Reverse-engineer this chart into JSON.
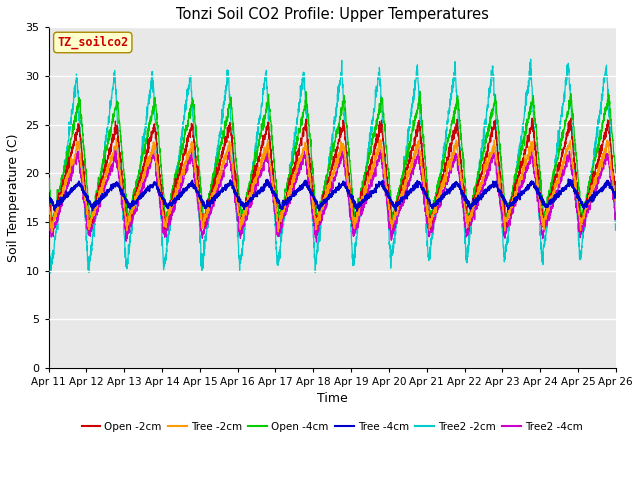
{
  "title": "Tonzi Soil CO2 Profile: Upper Temperatures",
  "xlabel": "Time",
  "ylabel": "Soil Temperature (C)",
  "ylim": [
    0,
    35
  ],
  "yticks": [
    0,
    5,
    10,
    15,
    20,
    25,
    30,
    35
  ],
  "x_start": 11,
  "x_end": 26,
  "x_ticks": [
    11,
    12,
    13,
    14,
    15,
    16,
    17,
    18,
    19,
    20,
    21,
    22,
    23,
    24,
    25,
    26
  ],
  "x_tick_labels": [
    "Apr 11",
    "Apr 12",
    "Apr 13",
    "Apr 14",
    "Apr 15",
    "Apr 16",
    "Apr 17",
    "Apr 18",
    "Apr 19",
    "Apr 20",
    "Apr 21",
    "Apr 22",
    "Apr 23",
    "Apr 24",
    "Apr 25",
    "Apr 26"
  ],
  "series_colors": {
    "Open -2cm": "#cc0000",
    "Tree -2cm": "#ff9900",
    "Open -4cm": "#00cc00",
    "Tree -4cm": "#0000cc",
    "Tree2 -2cm": "#00cccc",
    "Tree2 -4cm": "#cc00cc"
  },
  "legend_colors": [
    "#cc0000",
    "#ff9900",
    "#00cc00",
    "#0000cc",
    "#00cccc",
    "#cc00cc"
  ],
  "legend_labels": [
    "Open -2cm",
    "Tree -2cm",
    "Open -4cm",
    "Tree -4cm",
    "Tree2 -2cm",
    "Tree2 -4cm"
  ],
  "watermark_text": "TZ_soilco2",
  "watermark_color": "#cc0000",
  "watermark_bg": "#ffffcc",
  "background_plot": "#e8e8e8",
  "background_fig": "#ffffff",
  "grid_color": "#ffffff",
  "n_points": 3000,
  "period_days": 1.0,
  "base_temp": 17.0,
  "cyan_base": 17.0,
  "cyan_amp_day": 10.0,
  "cyan_amp_night": 6.0,
  "open2_amp": 5.5,
  "tree2_amp": 4.0,
  "open4_amp": 6.0,
  "tree4_amp": 1.2,
  "magenta_amp": 4.5
}
